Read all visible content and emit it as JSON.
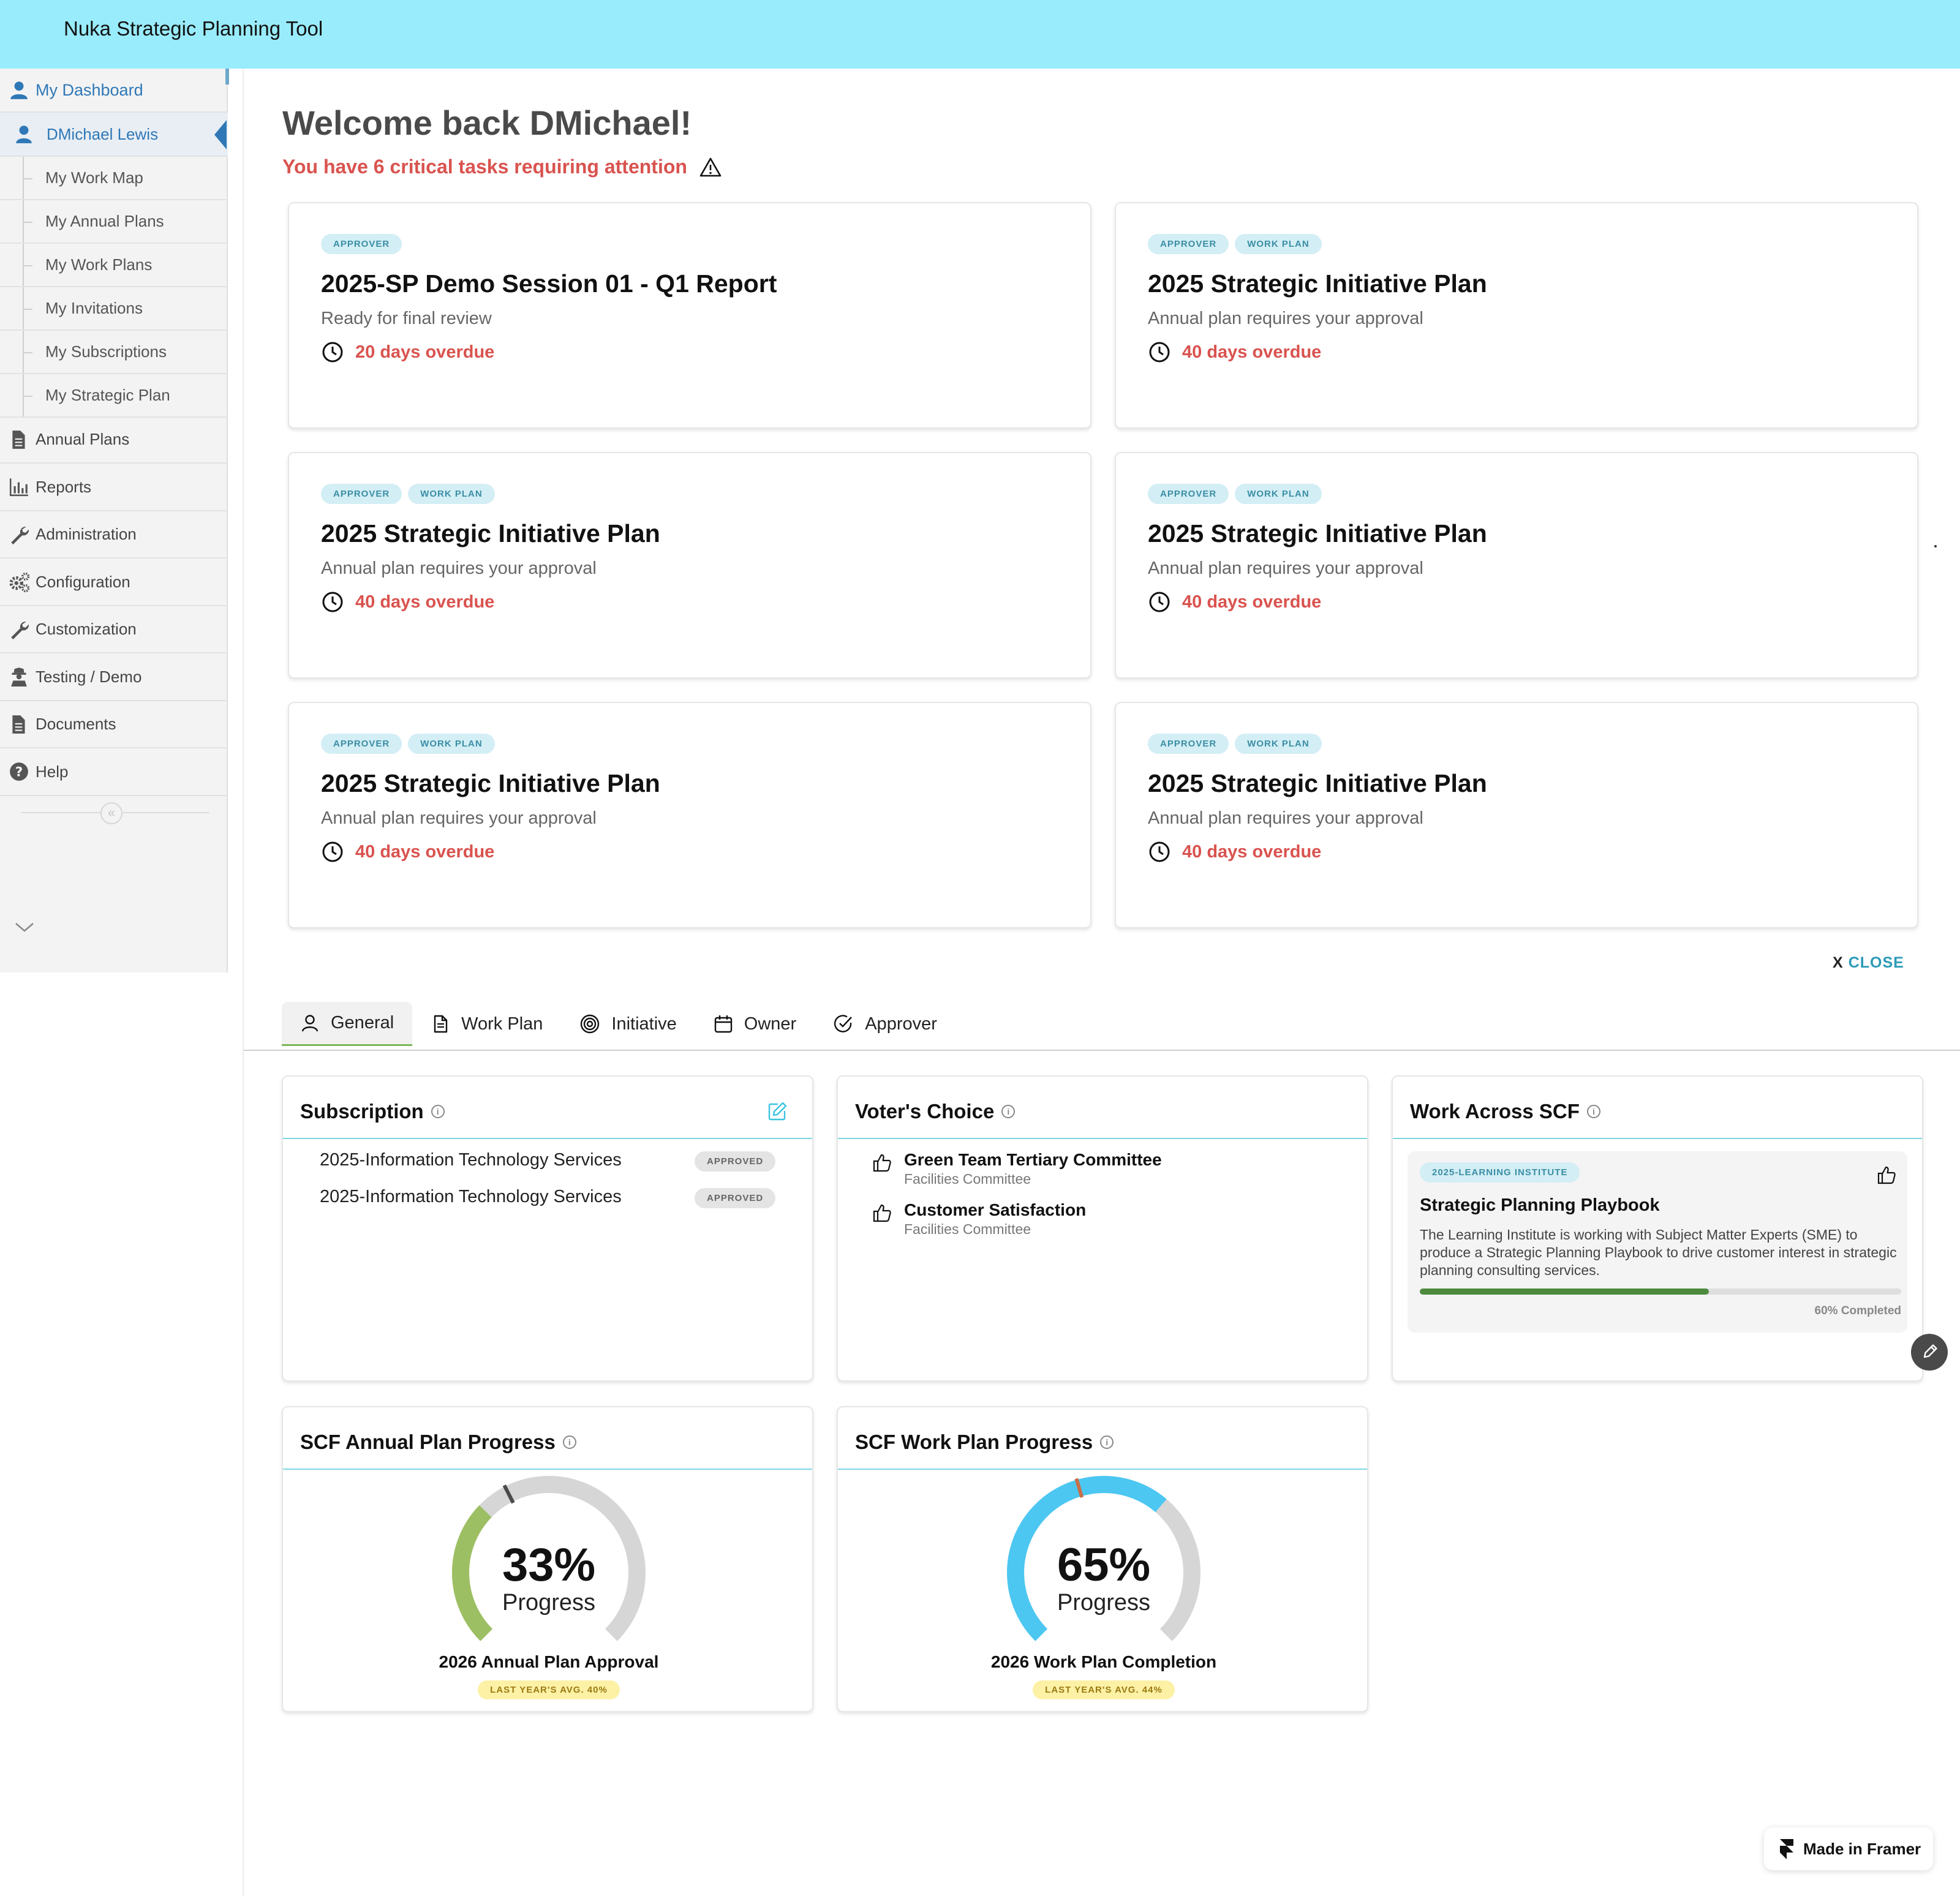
{
  "app": {
    "title": "Nuka Strategic Planning Tool"
  },
  "sidebar": {
    "dashboard_label": "My Dashboard",
    "user_label": "DMichael Lewis",
    "sub_items": [
      "My Work Map",
      "My Annual Plans",
      "My Work Plans",
      "My Invitations",
      "My Subscriptions",
      "My Strategic Plan"
    ],
    "menu": [
      {
        "label": "Annual Plans",
        "icon": "document-icon"
      },
      {
        "label": "Reports",
        "icon": "bar-chart-icon"
      },
      {
        "label": "Administration",
        "icon": "wrench-icon"
      },
      {
        "label": "Configuration",
        "icon": "gears-icon"
      },
      {
        "label": "Customization",
        "icon": "wrench-icon"
      },
      {
        "label": "Testing / Demo",
        "icon": "user-secret-icon"
      },
      {
        "label": "Documents",
        "icon": "document-icon"
      },
      {
        "label": "Help",
        "icon": "question-circle-icon"
      }
    ],
    "collapse_glyph": "«"
  },
  "header": {
    "welcome": "Welcome back DMichael!",
    "critical": "You have 6 critical tasks requiring attention"
  },
  "tasks": [
    {
      "tags": [
        "APPROVER"
      ],
      "title": "2025-SP Demo Session 01 - Q1 Report",
      "desc": "Ready for final review",
      "due": "20 days overdue"
    },
    {
      "tags": [
        "APPROVER",
        "WORK PLAN"
      ],
      "title": "2025 Strategic Initiative Plan",
      "desc": "Annual plan requires your approval",
      "due": "40 days overdue"
    },
    {
      "tags": [
        "APPROVER",
        "WORK PLAN"
      ],
      "title": "2025 Strategic Initiative Plan",
      "desc": "Annual plan requires your approval",
      "due": "40 days overdue"
    },
    {
      "tags": [
        "APPROVER",
        "WORK PLAN"
      ],
      "title": "2025 Strategic Initiative Plan",
      "desc": "Annual plan requires your approval",
      "due": "40 days overdue"
    },
    {
      "tags": [
        "APPROVER",
        "WORK PLAN"
      ],
      "title": "2025 Strategic Initiative Plan",
      "desc": "Annual plan requires your approval",
      "due": "40 days overdue"
    },
    {
      "tags": [
        "APPROVER",
        "WORK PLAN"
      ],
      "title": "2025 Strategic Initiative Plan",
      "desc": "Annual plan requires your approval",
      "due": "40 days overdue"
    }
  ],
  "close": {
    "x": "X",
    "label": "CLOSE"
  },
  "tabs": [
    {
      "label": "General",
      "icon": "user-icon",
      "active": true
    },
    {
      "label": "Work Plan",
      "icon": "file-icon",
      "active": false
    },
    {
      "label": "Initiative",
      "icon": "target-icon",
      "active": false
    },
    {
      "label": "Owner",
      "icon": "calendar-icon",
      "active": false
    },
    {
      "label": "Approver",
      "icon": "check-circle-icon",
      "active": false
    }
  ],
  "subscription": {
    "title": "Subscription",
    "items": [
      {
        "name": "2025-Information Technology Services",
        "status": "APPROVED"
      },
      {
        "name": "2025-Information Technology Services",
        "status": "APPROVED"
      }
    ]
  },
  "voters_choice": {
    "title": "Voter's Choice",
    "items": [
      {
        "title": "Green Team Tertiary Committee",
        "sub": "Facilities Committee"
      },
      {
        "title": "Customer Satisfaction",
        "sub": "Facilities Committee"
      }
    ]
  },
  "work_across": {
    "title": "Work Across SCF",
    "tag": "2025-LEARNING INSTITUTE",
    "item_title": "Strategic Planning Playbook",
    "description": "The Learning Institute is working with Subject Matter Experts (SME) to produce a Strategic Planning Playbook to drive customer interest in strategic planning consulting services.",
    "progress": 0.6,
    "progress_label": "60% Completed"
  },
  "annual_progress": {
    "title": "SCF Annual Plan Progress",
    "value": 33,
    "percent_label": "33%",
    "word": "Progress",
    "caption": "2026 Annual Plan Approval",
    "badge": "LAST YEAR'S AVG. 40%",
    "last_year": 40,
    "color": "#9dbf63"
  },
  "workplan_progress": {
    "title": "SCF Work Plan Progress",
    "value": 65,
    "percent_label": "65%",
    "word": "Progress",
    "caption": "2026 Work Plan Completion",
    "badge": "LAST YEAR'S AVG. 44%",
    "last_year": 44,
    "color": "#4cc7f2"
  },
  "framer": {
    "label": "Made in Framer"
  }
}
